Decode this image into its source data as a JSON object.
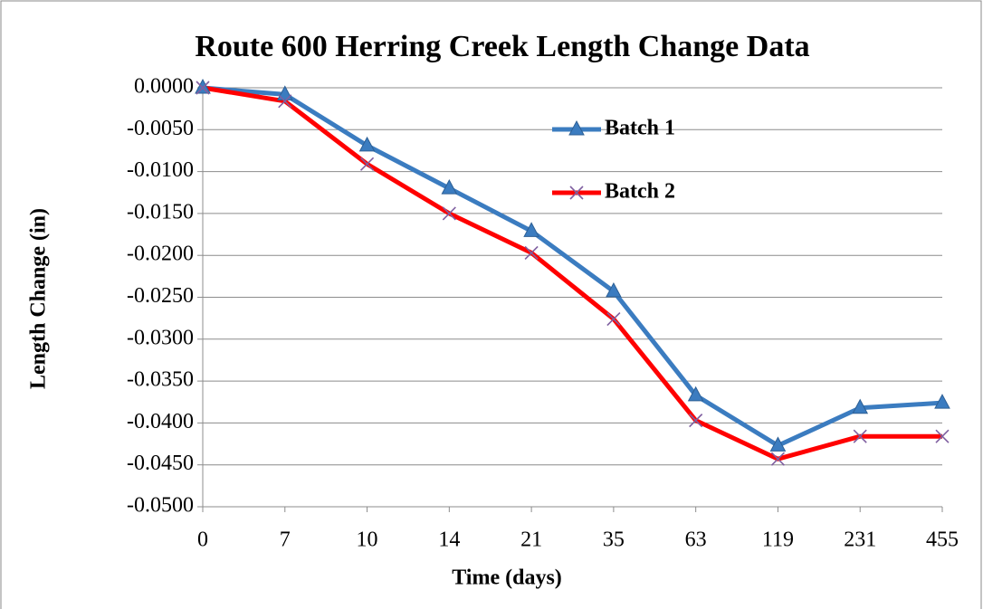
{
  "chart_data": {
    "type": "line",
    "title": "Route 600 Herring Creek Length Change Data",
    "x_label": "Time (days)",
    "y_label": "Length Change (in)",
    "categories": [
      "0",
      "7",
      "10",
      "14",
      "21",
      "35",
      "63",
      "119",
      "231",
      "455"
    ],
    "series": [
      {
        "name": "Batch 1",
        "color": "#3b7cc0",
        "marker": "triangle",
        "marker_color": "#3b7cc0",
        "values": [
          0,
          -0.0008,
          -0.0069,
          -0.012,
          -0.0171,
          -0.0243,
          -0.0367,
          -0.0427,
          -0.0382,
          -0.0376
        ]
      },
      {
        "name": "Batch 2",
        "color": "#ff0000",
        "marker": "x",
        "marker_color": "#7f5fa0",
        "values": [
          0,
          -0.0016,
          -0.0091,
          -0.015,
          -0.0197,
          -0.0276,
          -0.0397,
          -0.0443,
          -0.0416,
          -0.0416
        ]
      }
    ],
    "ylim": [
      -0.05,
      0
    ],
    "yticks": [
      {
        "value": 0,
        "label": "0.0000"
      },
      {
        "value": -0.005,
        "label": "-0.0050"
      },
      {
        "value": -0.01,
        "label": "-0.0100"
      },
      {
        "value": -0.015,
        "label": "-0.0150"
      },
      {
        "value": -0.02,
        "label": "-0.0200"
      },
      {
        "value": -0.025,
        "label": "-0.0250"
      },
      {
        "value": -0.03,
        "label": "-0.0300"
      },
      {
        "value": -0.035,
        "label": "-0.0350"
      },
      {
        "value": -0.04,
        "label": "-0.0400"
      },
      {
        "value": -0.045,
        "label": "-0.0450"
      },
      {
        "value": -0.05,
        "label": "-0.0500"
      }
    ],
    "grid": true,
    "legend": "top-right"
  }
}
